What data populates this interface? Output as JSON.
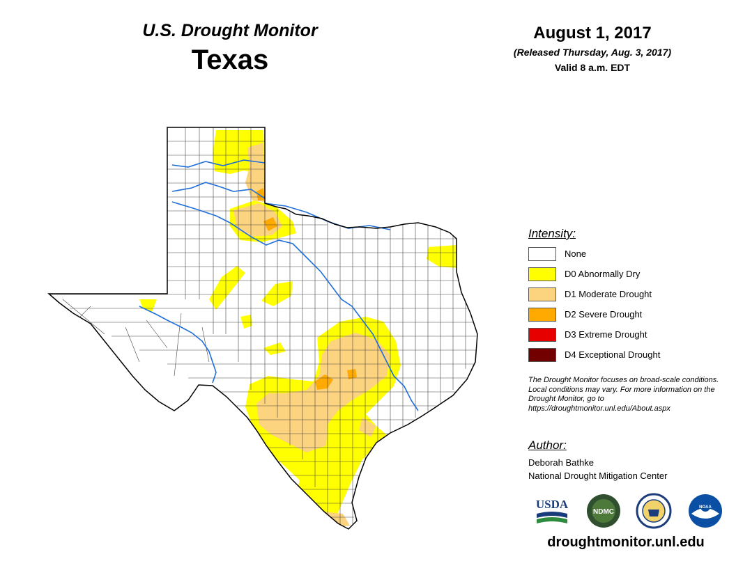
{
  "header": {
    "title": "U.S. Drought Monitor",
    "state": "Texas",
    "date": "August 1, 2017",
    "released": "(Released Thursday, Aug. 3, 2017)",
    "valid": "Valid 8 a.m. EDT"
  },
  "legend": {
    "heading": "Intensity:",
    "items": [
      {
        "label": "None",
        "color": "#ffffff"
      },
      {
        "label": "D0 Abnormally Dry",
        "color": "#ffff00"
      },
      {
        "label": "D1 Moderate Drought",
        "color": "#fcd37f"
      },
      {
        "label": "D2 Severe Drought",
        "color": "#ffaa00"
      },
      {
        "label": "D3 Extreme Drought",
        "color": "#e60000"
      },
      {
        "label": "D4 Exceptional Drought",
        "color": "#730000"
      }
    ]
  },
  "note": "The Drought Monitor focuses on broad-scale conditions. Local conditions may vary. For more information on the Drought Monitor, go to https://droughtmonitor.unl.edu/About.aspx",
  "author": {
    "heading": "Author:",
    "name": "Deborah Bathke",
    "org": "National Drought Mitigation Center"
  },
  "logos": [
    {
      "text": "USDA",
      "icon": "usda-logo"
    },
    {
      "text": "NDMC",
      "icon": "ndmc-logo"
    },
    {
      "text": "",
      "icon": "doc-seal-logo"
    },
    {
      "text": "NOAA",
      "icon": "noaa-logo"
    }
  ],
  "website": "droughtmonitor.unl.edu",
  "colors": {
    "river": "#1f6fd9",
    "county_border": "#333333",
    "state_border": "#000000"
  }
}
